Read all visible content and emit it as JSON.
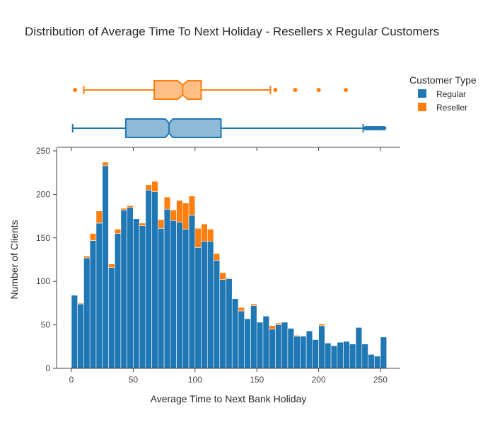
{
  "chart_data": {
    "type": "histogram",
    "title": "Distribution of Average Time To Next Holiday - Resellers x Regular Customers",
    "xlabel": "Average Time to Next Bank Holiday",
    "ylabel": "Number of Clients",
    "xlim": [
      -12,
      266
    ],
    "ylim": [
      0,
      250
    ],
    "x_ticks": [
      0,
      50,
      100,
      150,
      200,
      250
    ],
    "y_ticks": [
      0,
      50,
      100,
      150,
      200,
      250
    ],
    "bar_mode": "stacked",
    "bin_width": 5,
    "bin_starts": [
      0,
      5,
      10,
      15,
      20,
      25,
      30,
      35,
      40,
      45,
      50,
      55,
      60,
      65,
      70,
      75,
      80,
      85,
      90,
      95,
      100,
      105,
      110,
      115,
      120,
      125,
      130,
      135,
      140,
      145,
      150,
      155,
      160,
      165,
      170,
      175,
      180,
      185,
      190,
      195,
      200,
      205,
      210,
      215,
      220,
      225,
      230,
      235,
      240,
      245,
      250
    ],
    "legend": {
      "title": "Customer Type",
      "position": "top-right"
    },
    "series": [
      {
        "name": "Regular",
        "color": "#1f77b4",
        "values": [
          84,
          74,
          127,
          147,
          167,
          233,
          116,
          155,
          182,
          185,
          172,
          164,
          205,
          203,
          161,
          183,
          170,
          168,
          160,
          176,
          139,
          146,
          146,
          124,
          102,
          103,
          80,
          66,
          57,
          72,
          53,
          60,
          45,
          50,
          53,
          46,
          37,
          37,
          43,
          33,
          49,
          29,
          26,
          30,
          31,
          28,
          47,
          28,
          16,
          14,
          36
        ],
        "box": {
          "min": 1,
          "q1": 44,
          "median": 79,
          "q3": 121,
          "upper_fence": 236,
          "notch_low": 76,
          "notch_high": 82,
          "outliers": [
            238,
            239,
            240,
            241,
            242,
            243,
            244,
            245,
            246,
            247,
            248,
            249,
            250,
            251,
            252,
            253
          ]
        }
      },
      {
        "name": "Reseller",
        "color": "#ff7f0e",
        "values": [
          0,
          1,
          2,
          8,
          14,
          4,
          4,
          5,
          2,
          2,
          0,
          3,
          6,
          12,
          10,
          14,
          12,
          25,
          30,
          22,
          22,
          20,
          14,
          8,
          8,
          1,
          0,
          4,
          0,
          2,
          0,
          0,
          4,
          2,
          0,
          0,
          1,
          0,
          0,
          0,
          2,
          0,
          0,
          0,
          0,
          0,
          0,
          0,
          0,
          0,
          0
        ],
        "box": {
          "min": 10,
          "q1": 67,
          "median": 90,
          "q3": 105,
          "upper_fence": 161,
          "notch_low": 86,
          "notch_high": 94,
          "outliers": [
            3,
            165,
            181,
            200,
            222
          ]
        }
      }
    ]
  }
}
